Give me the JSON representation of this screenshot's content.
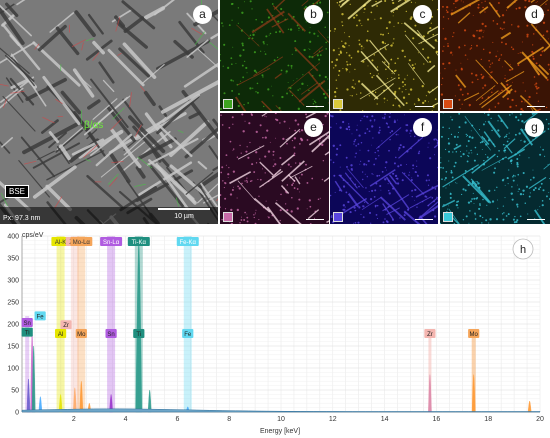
{
  "panel_a": {
    "letter": "a",
    "mode_label": "BSE",
    "pixel_size": "Px: 97.3 nm",
    "scale_bar": "10 µm",
    "phase_label": "β/αs"
  },
  "map_panels": [
    {
      "letter": "b",
      "base": "#0d2a08",
      "fg": "#3ea520",
      "line": "#8a3a18",
      "density": 180
    },
    {
      "letter": "c",
      "base": "#2e2a05",
      "fg": "#d9c83a",
      "line": "#fff59a",
      "density": 220
    },
    {
      "letter": "d",
      "base": "#3a1405",
      "fg": "#d84a12",
      "line": "#f5a01e",
      "density": 220
    },
    {
      "letter": "e",
      "base": "#2a0a22",
      "fg": "#c86aa8",
      "line": "#ffe2ef",
      "density": 200
    },
    {
      "letter": "f",
      "base": "#0c0658",
      "fg": "#5a46e0",
      "line": "#5a46e0",
      "density": 260
    },
    {
      "letter": "g",
      "base": "#052a30",
      "fg": "#3ac8d8",
      "line": "#3ac8d8",
      "density": 260
    }
  ],
  "panel_h_letter": "h",
  "chart_data": {
    "type": "line",
    "ylabel": "cps/eV",
    "xlabel": "Energy [keV]",
    "xlim": [
      0,
      20
    ],
    "ylim": [
      0,
      400
    ],
    "x_ticks": [
      "2",
      "4",
      "6",
      "8",
      "10",
      "12",
      "14",
      "16",
      "18",
      "20"
    ],
    "y_ticks": [
      "0",
      "50",
      "100",
      "150",
      "200",
      "250",
      "300",
      "350",
      "400"
    ],
    "grid": true,
    "peaks": [
      {
        "x": 0.25,
        "y": 75,
        "color": "#6a5acd"
      },
      {
        "x": 0.39,
        "y": 185,
        "color": "#cc66cc"
      },
      {
        "x": 0.45,
        "y": 150,
        "color": "#2a9a8a"
      },
      {
        "x": 0.71,
        "y": 35,
        "color": "#44aaff"
      },
      {
        "x": 1.49,
        "y": 40,
        "color": "#e6e600"
      },
      {
        "x": 2.04,
        "y": 55,
        "color": "#ffaa66"
      },
      {
        "x": 2.29,
        "y": 70,
        "color": "#ff9933"
      },
      {
        "x": 2.6,
        "y": 20,
        "color": "#ff9933"
      },
      {
        "x": 3.44,
        "y": 40,
        "color": "#9933cc"
      },
      {
        "x": 4.51,
        "y": 385,
        "color": "#2a9a8a"
      },
      {
        "x": 4.93,
        "y": 50,
        "color": "#2a9a8a"
      },
      {
        "x": 6.4,
        "y": 12,
        "color": "#44aaff"
      },
      {
        "x": 15.75,
        "y": 85,
        "color": "#dd88aa"
      },
      {
        "x": 17.44,
        "y": 85,
        "color": "#ff9933"
      },
      {
        "x": 19.6,
        "y": 25,
        "color": "#ff9933"
      }
    ],
    "top_labels": [
      {
        "text": "Al-K",
        "x": 1.49,
        "color": "#e6e600",
        "text_color": "#333333"
      },
      {
        "text": "Zr-L",
        "x": 2.04,
        "color": "#f4b6b0",
        "text_color": "#333333"
      },
      {
        "text": "Mo-Lα",
        "x": 2.29,
        "color": "#f5a55a",
        "text_color": "#333333"
      },
      {
        "text": "Sn-Lα",
        "x": 3.44,
        "color": "#b05ce0",
        "text_color": "#ffffff"
      },
      {
        "text": "Ti-Kα",
        "x": 4.51,
        "color": "#1f8f7f",
        "text_color": "#ffffff"
      },
      {
        "text": "Fe-Kα",
        "x": 6.4,
        "color": "#60d8f0",
        "text_color": "#ffffff"
      }
    ],
    "mid_labels": [
      {
        "text": "Fe",
        "x": 0.7,
        "y": 215,
        "color": "#60d8f0"
      },
      {
        "text": "Sn",
        "x": 0.2,
        "y": 200,
        "color": "#b05ce0"
      },
      {
        "text": "Ti",
        "x": 0.2,
        "y": 178,
        "color": "#1f8f7f"
      },
      {
        "text": "Zr",
        "x": 1.7,
        "y": 195,
        "color": "#f4b6b0"
      },
      {
        "text": "Al",
        "x": 1.49,
        "y": 175,
        "color": "#e6e600"
      },
      {
        "text": "Mo",
        "x": 2.29,
        "y": 175,
        "color": "#f5a55a"
      },
      {
        "text": "Sn",
        "x": 3.44,
        "y": 175,
        "color": "#b05ce0"
      },
      {
        "text": "Ti",
        "x": 4.51,
        "y": 175,
        "color": "#1f8f7f"
      },
      {
        "text": "Fe",
        "x": 6.4,
        "y": 175,
        "color": "#60d8f0"
      },
      {
        "text": "Zr",
        "x": 15.75,
        "y": 175,
        "color": "#f4b6b0"
      },
      {
        "text": "Mo",
        "x": 17.44,
        "y": 175,
        "color": "#f5a55a"
      }
    ]
  }
}
